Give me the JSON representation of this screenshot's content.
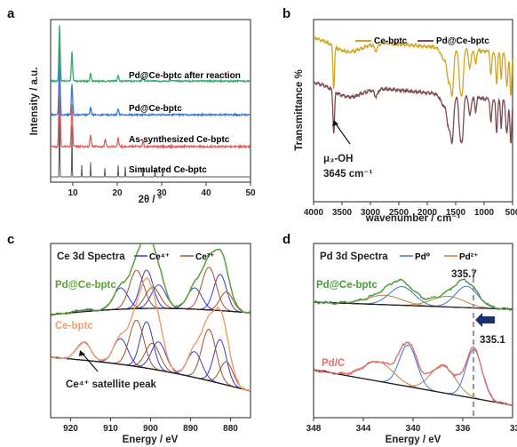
{
  "panel_labels": [
    "a",
    "b",
    "c",
    "d"
  ],
  "chart_data": [
    {
      "type": "line",
      "panel": "a",
      "xlabel": "2θ / °",
      "ylabel": "Intensity / a.u.",
      "xlim": [
        5,
        50
      ],
      "x_ticks": [
        10,
        20,
        30,
        40,
        50
      ],
      "y_ticks_shown": false,
      "series": [
        {
          "label": "Simulated Ce-bptc",
          "color": "#555555",
          "peaks": [
            [
              7.0,
              1.0
            ],
            [
              9.8,
              0.35
            ],
            [
              12.0,
              0.08
            ],
            [
              14.0,
              0.1
            ],
            [
              17.2,
              0.06
            ],
            [
              20.2,
              0.08
            ],
            [
              21.8,
              0.07
            ],
            [
              25.8,
              0.06
            ],
            [
              28.5,
              0.05
            ],
            [
              30.2,
              0.04
            ]
          ]
        },
        {
          "label": "As-synthesized Ce-bptc",
          "color": "#e06060",
          "peaks": [
            [
              7.0,
              0.85
            ],
            [
              9.8,
              0.45
            ],
            [
              14.0,
              0.12
            ],
            [
              17.3,
              0.08
            ],
            [
              20.2,
              0.09
            ],
            [
              25.8,
              0.06
            ]
          ]
        },
        {
          "label": "Pd@Ce-bptc",
          "color": "#3a78d0",
          "peaks": [
            [
              7.0,
              0.7
            ],
            [
              9.8,
              0.4
            ],
            [
              14.0,
              0.1
            ],
            [
              20.2,
              0.08
            ]
          ]
        },
        {
          "label": "Pd@Ce-bptc after reaction",
          "color": "#3aaa6a",
          "peaks": [
            [
              7.0,
              0.8
            ],
            [
              9.8,
              0.42
            ],
            [
              14.0,
              0.11
            ],
            [
              20.2,
              0.09
            ],
            [
              25.8,
              0.06
            ]
          ]
        }
      ]
    },
    {
      "type": "line",
      "panel": "b",
      "xlabel": "wavenumber / cm⁻¹",
      "ylabel": "Transmittance %",
      "xlim": [
        4000,
        500
      ],
      "x_ticks": [
        4000,
        3500,
        3000,
        2500,
        2000,
        1500,
        1000,
        500
      ],
      "legend": [
        "Ce-bptc",
        "Pd@Ce-bptc"
      ],
      "annotation": {
        "line1": "μ₃-OH",
        "line2": "3645 cm⁻¹",
        "x": 3645
      },
      "series": [
        {
          "label": "Ce-bptc",
          "color": "#d4a520"
        },
        {
          "label": "Pd@Ce-bptc",
          "color": "#7a4a50"
        }
      ]
    },
    {
      "type": "line",
      "panel": "c",
      "title": "Ce 3d Spectra",
      "xlabel": "Energy / eV",
      "xlim": [
        925,
        875
      ],
      "x_ticks": [
        920,
        910,
        900,
        890,
        880
      ],
      "legend": [
        {
          "label": "Ce⁴⁺",
          "color": "#3a3ac8"
        },
        {
          "label": "Ce³⁺",
          "color": "#a0522d"
        }
      ],
      "series_labels": [
        {
          "text": "Pd@Ce-bptc",
          "color": "#5aa03a"
        },
        {
          "text": "Ce-bptc",
          "color": "#f0a070"
        }
      ],
      "annotation": "Ce⁴⁺ satellite peak"
    },
    {
      "type": "line",
      "panel": "d",
      "title": "Pd 3d Spectra",
      "xlabel": "Energy / eV",
      "xlim": [
        348,
        332
      ],
      "x_ticks": [
        348,
        344,
        340,
        336
      ],
      "x_tick_last": "33",
      "legend": [
        {
          "label": "Pd⁰",
          "color": "#3a78c8"
        },
        {
          "label": "Pd²⁺",
          "color": "#c08040"
        }
      ],
      "series_labels": [
        {
          "text": "Pd@Ce-bptc",
          "color": "#4a9a3a"
        },
        {
          "text": "Pd/C",
          "color": "#e07070"
        }
      ],
      "peak_labels": [
        {
          "text": "335.7",
          "x": 335.7
        },
        {
          "text": "335.1",
          "x": 335.1
        }
      ]
    }
  ]
}
